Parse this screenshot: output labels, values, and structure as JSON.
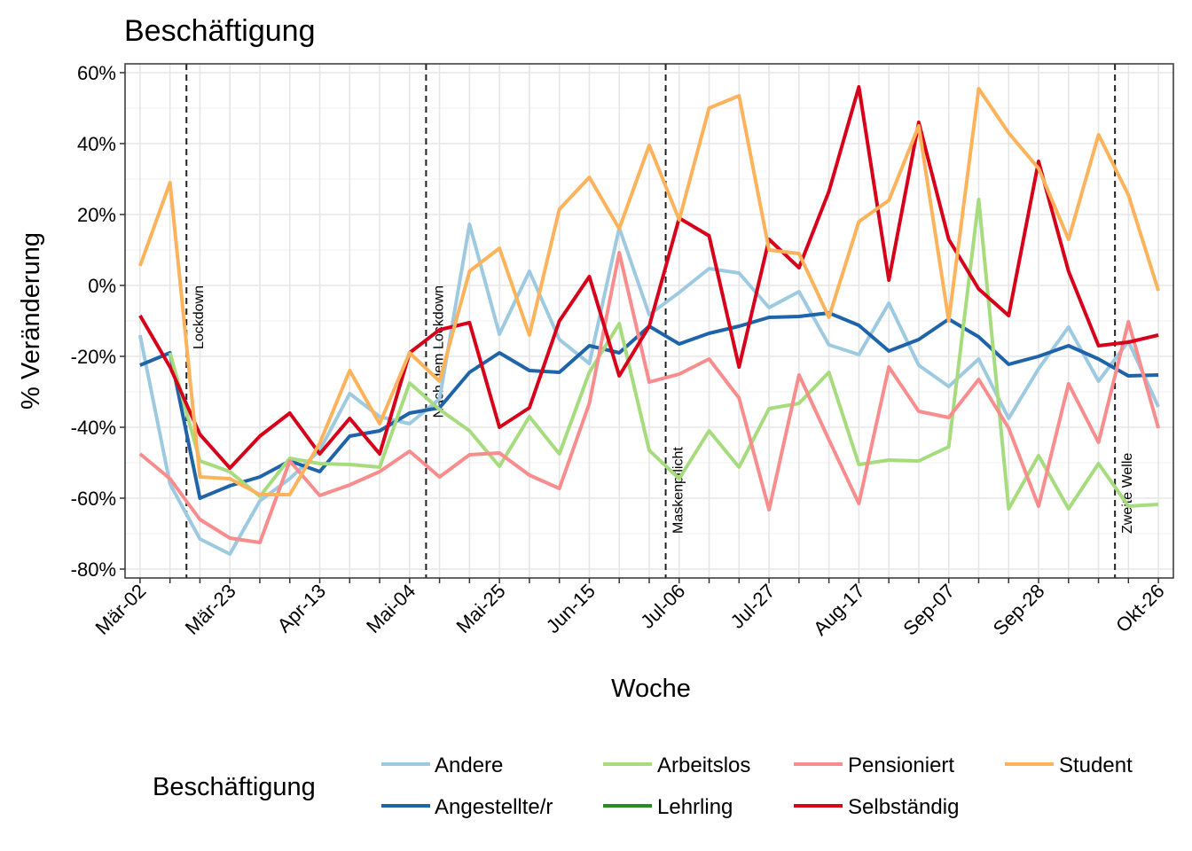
{
  "chart_data": {
    "type": "line",
    "title": "Beschäftigung",
    "x_label": "Woche",
    "y_label": "% Veränderung",
    "legend_title": "Beschäftigung",
    "categories": [
      "Mär-02",
      null,
      null,
      "Mär-23",
      null,
      null,
      "Apr-13",
      null,
      null,
      "Mai-04",
      null,
      null,
      "Mai-25",
      null,
      null,
      "Jun-15",
      null,
      null,
      "Jul-06",
      null,
      null,
      "Jul-27",
      null,
      null,
      "Aug-17",
      null,
      null,
      "Sep-07",
      null,
      null,
      "Sep-28",
      null,
      null,
      null,
      "Okt-26"
    ],
    "ylim": [
      -82.5,
      62.5
    ],
    "yticks": [
      {
        "value": -80,
        "label": "-80%"
      },
      {
        "value": -60,
        "label": "-60%"
      },
      {
        "value": -40,
        "label": "-40%"
      },
      {
        "value": -20,
        "label": "-20%"
      },
      {
        "value": 0,
        "label": "0%"
      },
      {
        "value": 20,
        "label": "20%"
      },
      {
        "value": 40,
        "label": "40%"
      },
      {
        "value": 60,
        "label": "60%"
      }
    ],
    "grid": true,
    "annotations": [
      {
        "text": "Lockdown",
        "x": 1.55
      },
      {
        "text": "Nach dem Lockdown",
        "x": 9.55
      },
      {
        "text": "Maskenpflicht",
        "x": 17.55
      },
      {
        "text": "Zweite Welle",
        "x": 32.55
      }
    ],
    "series": [
      {
        "name": "Andere",
        "color": "#9ecae1",
        "values": [
          -14,
          -56,
          -71.5,
          -75.75,
          -60.75,
          -54.5,
          -46.5,
          -30.5,
          -37,
          -39,
          -32,
          17.25,
          -13.75,
          4,
          -15.25,
          -22,
          16.25,
          -8.25,
          -2,
          4.75,
          3.5,
          -6.25,
          -1.75,
          -16.75,
          -19.5,
          -5,
          -22.5,
          -28.5,
          -20.75,
          -37.5,
          -23.5,
          -11.75,
          -27,
          -15.75,
          -34.25
        ]
      },
      {
        "name": "Angestellte/r",
        "color": "#1f63a8",
        "values": [
          -22.5,
          -19,
          -60,
          -56.5,
          -54,
          -49.5,
          -52.5,
          -42.5,
          -41,
          -36,
          -34.5,
          -24.5,
          -19,
          -24,
          -24.5,
          -17,
          -19,
          -11.5,
          -16.5,
          -13.5,
          -11.5,
          -9,
          -8.75,
          -7.75,
          -11.25,
          -18.5,
          -15.25,
          -9.5,
          -14.5,
          -22.25,
          -20,
          -17,
          -20.75,
          -25.5,
          -25.25
        ]
      },
      {
        "name": "Arbeitslos",
        "color": "#a6dc7e",
        "values": [
          null,
          -19,
          -49.5,
          -52.5,
          -59.5,
          -48.75,
          -50.25,
          -50.5,
          -51.25,
          -27.5,
          -35,
          -41,
          -51,
          -37,
          -47.5,
          -24.5,
          -10.75,
          -46.5,
          -54.5,
          -41,
          -51.25,
          -34.75,
          -33.25,
          -24.5,
          -50.5,
          -49.25,
          -49.5,
          -45.5,
          24.25,
          -63,
          -48,
          -63,
          -50.25,
          -62.25,
          -61.75
        ]
      },
      {
        "name": "Lehrling",
        "color": "#2a8a24",
        "values": [
          null,
          null,
          null,
          null,
          null,
          null,
          null,
          null,
          null,
          null,
          null,
          null,
          null,
          null,
          null,
          null,
          null,
          null,
          null,
          null,
          null,
          null,
          null,
          null,
          null,
          null,
          null,
          null,
          null,
          null,
          null,
          null,
          null,
          null,
          null
        ]
      },
      {
        "name": "Pensioniert",
        "color": "#f98c8c",
        "values": [
          -47.5,
          -54.5,
          -66,
          -71.25,
          -72.5,
          -49.5,
          -59.25,
          -56.25,
          -52.5,
          -46.75,
          -54,
          -47.75,
          -47.25,
          -53.5,
          -57.25,
          -33.25,
          9.25,
          -27.25,
          -25,
          -20.75,
          -31.75,
          -63.25,
          -25.25,
          -43.5,
          -61.5,
          -23,
          -35.5,
          -37.25,
          -26.5,
          -40.25,
          -62.25,
          -27.75,
          -44.25,
          -10.25,
          -40.25
        ]
      },
      {
        "name": "Selbständig",
        "color": "#d7001a",
        "values": [
          -8.5,
          -23,
          -42,
          -51.5,
          -42.5,
          -36,
          -47.5,
          -37.5,
          -47.5,
          -19,
          -12.5,
          -10.5,
          -40,
          -34.5,
          -10,
          2.5,
          -25.5,
          -11.5,
          19,
          14,
          -23,
          13,
          5,
          26.5,
          56,
          1.5,
          46,
          13,
          -1,
          -8.5,
          35,
          4,
          -17,
          -16,
          -14
        ]
      },
      {
        "name": "Student",
        "color": "#fdb35c",
        "values": [
          5.5,
          29,
          -54,
          -54.5,
          -59,
          -59,
          -44.5,
          -24,
          -39,
          -19,
          -27,
          4,
          10.5,
          -14,
          21.5,
          30.5,
          16,
          39.5,
          18.5,
          50,
          53.5,
          10,
          9,
          -9,
          18,
          24,
          45,
          -10,
          55.5,
          43,
          33,
          13,
          42.5,
          25.5,
          -1.5
        ]
      }
    ]
  }
}
